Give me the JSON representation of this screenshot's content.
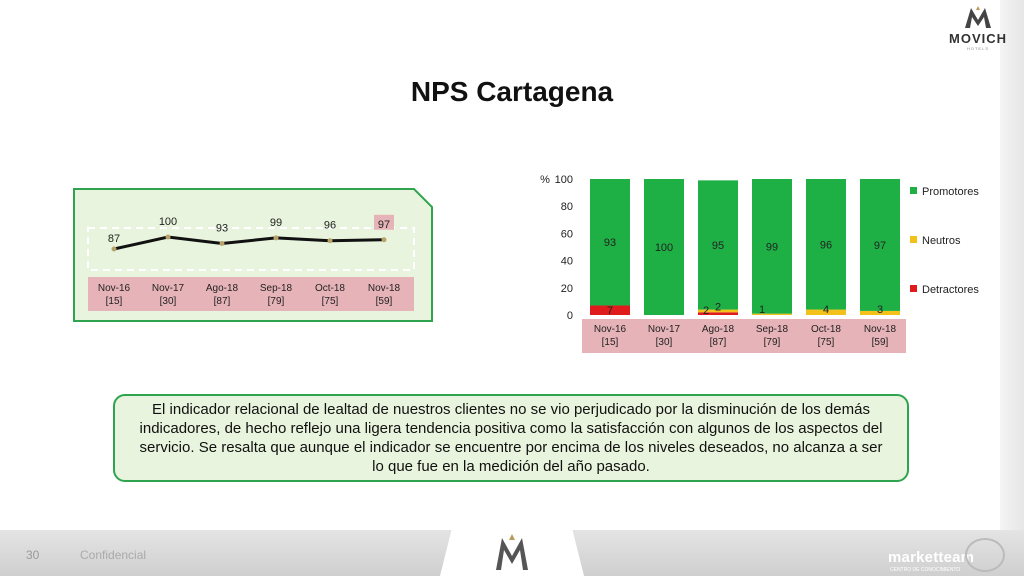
{
  "header": {
    "logo_text": "MOVICH",
    "logo_sub": "HOTELS",
    "title": "NPS Cartagena"
  },
  "summary_text": "El indicador relacional de lealtad de nuestros clientes no se vio perjudicado por la disminución de los demás indicadores, de hecho reflejo una ligera tendencia positiva como la satisfacción con algunos de los aspectos del servicio. Se resalta que aunque el indicador se encuentre por encima de los niveles deseados, no alcanza a ser lo que fue en la medición del año pasado.",
  "footer": {
    "page_number": "30",
    "confidential": "Confidencial",
    "brand": "marketteam",
    "brand_sub": "CENTRO DE CONOCIMIENTO"
  },
  "colors": {
    "green": "#1fb045",
    "yellow": "#f2c21b",
    "red": "#e01b1b",
    "label_bg": "#e6b3b8",
    "panel_bg": "#e8f4dd",
    "panel_border": "#2ea44f"
  },
  "chart_data": [
    {
      "type": "line",
      "categories": [
        "Nov-16",
        "Nov-17",
        "Ago-18",
        "Sep-18",
        "Oct-18",
        "Nov-18"
      ],
      "category_notes": [
        "[15]",
        "[30]",
        "[87]",
        "[79]",
        "[75]",
        "[59]"
      ],
      "values": [
        87,
        100,
        93,
        99,
        96,
        97
      ],
      "highlight_last": true
    },
    {
      "type": "bar",
      "stacked": true,
      "ylabel": "%",
      "ylim": [
        0,
        100
      ],
      "yticks": [
        0,
        20,
        40,
        60,
        80,
        100
      ],
      "categories": [
        "Nov-16",
        "Nov-17",
        "Ago-18",
        "Sep-18",
        "Oct-18",
        "Nov-18"
      ],
      "category_notes": [
        "[15]",
        "[30]",
        "[87]",
        "[79]",
        "[75]",
        "[59]"
      ],
      "series": [
        {
          "name": "Detractores",
          "color": "#e01b1b",
          "values": [
            7,
            0,
            2,
            0,
            0,
            0
          ],
          "labels": [
            "7",
            "",
            "2",
            "",
            "",
            ""
          ]
        },
        {
          "name": "Neutros",
          "color": "#f2c21b",
          "values": [
            0,
            0,
            2,
            1,
            4,
            3
          ],
          "labels": [
            "",
            "",
            "2",
            "1",
            "4",
            "3"
          ]
        },
        {
          "name": "Promotores",
          "color": "#1fb045",
          "values": [
            93,
            100,
            95,
            99,
            96,
            97
          ],
          "labels": [
            "93",
            "100",
            "95",
            "99",
            "96",
            "97"
          ]
        }
      ],
      "legend": "right",
      "legend_order": [
        "Promotores",
        "Neutros",
        "Detractores"
      ]
    }
  ]
}
